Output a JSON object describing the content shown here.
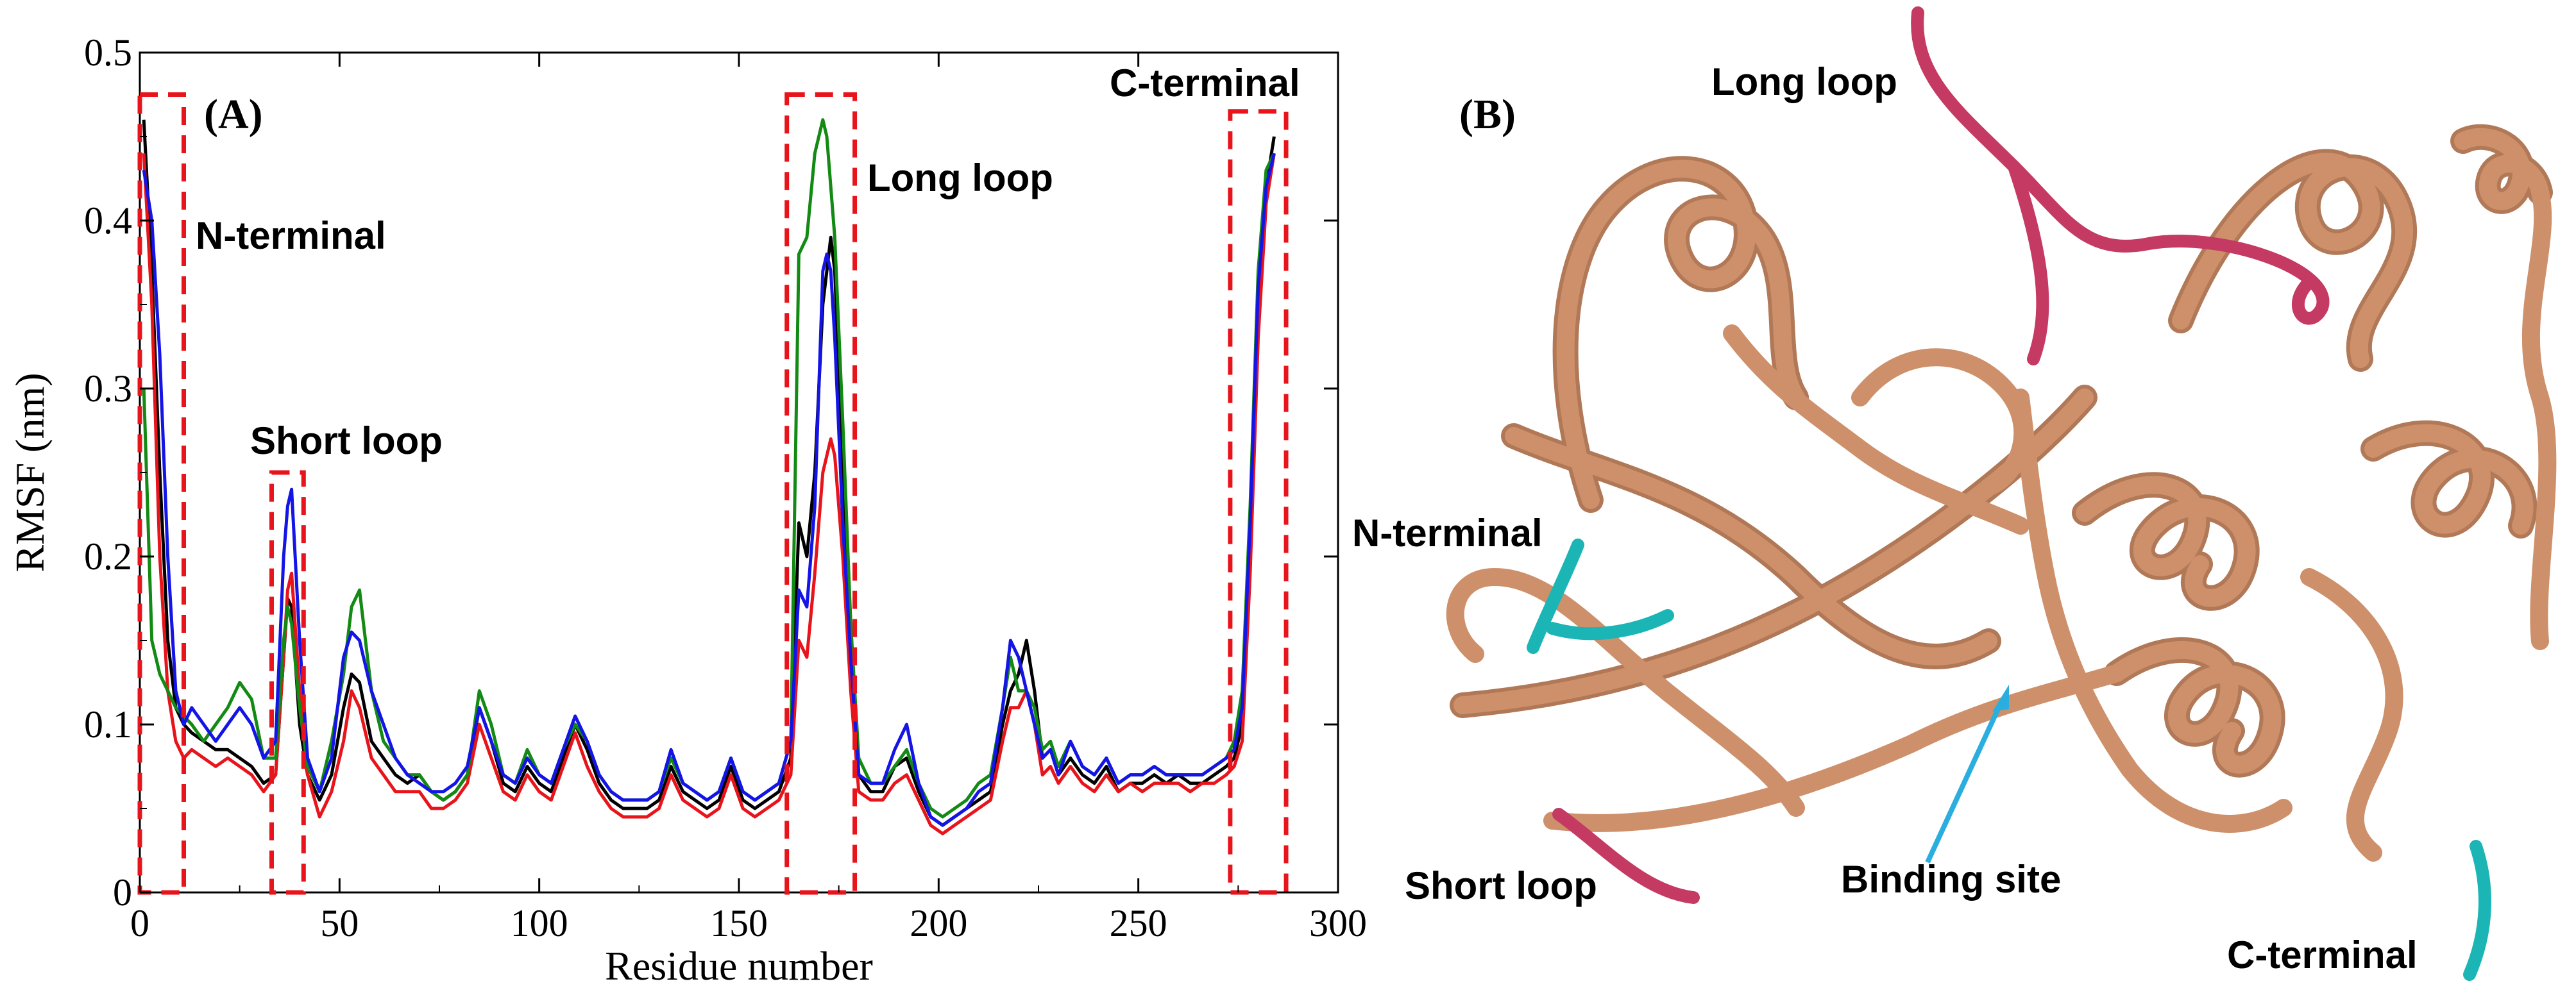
{
  "chart_data": {
    "type": "line",
    "panel_label": "(A)",
    "xlabel": "Residue number",
    "ylabel": "RMSF (nm)",
    "xlim": [
      0,
      300
    ],
    "ylim": [
      0,
      0.5
    ],
    "xticks": [
      0,
      50,
      100,
      150,
      200,
      250,
      300
    ],
    "yticks": [
      0,
      0.1,
      0.2,
      0.3,
      0.4,
      0.5
    ],
    "ytick_labels": [
      "0",
      "0.1",
      "0.2",
      "0.3",
      "0.4",
      "0.5"
    ],
    "regions": [
      {
        "name": "N-terminal",
        "x": [
          0,
          11
        ],
        "ymax": 0.475
      },
      {
        "name": "Short loop",
        "x": [
          33,
          41
        ],
        "ymax": 0.25
      },
      {
        "name": "Long loop",
        "x": [
          162,
          179
        ],
        "ymax": 0.475
      },
      {
        "name": "C-terminal",
        "x": [
          273,
          287
        ],
        "ymax": 0.465
      }
    ],
    "series": [
      {
        "name": "black",
        "color": "#000000",
        "x": [
          1,
          3,
          5,
          7,
          9,
          11,
          13,
          16,
          19,
          22,
          25,
          28,
          31,
          34,
          36,
          37,
          38,
          40,
          42,
          45,
          48,
          51,
          53,
          55,
          58,
          61,
          64,
          67,
          70,
          73,
          76,
          79,
          82,
          85,
          88,
          91,
          94,
          97,
          100,
          103,
          106,
          109,
          112,
          115,
          118,
          121,
          124,
          127,
          130,
          133,
          136,
          139,
          142,
          145,
          148,
          151,
          154,
          157,
          160,
          163,
          165,
          167,
          169,
          171,
          172,
          173,
          174,
          176,
          178,
          180,
          183,
          186,
          189,
          192,
          195,
          198,
          201,
          204,
          207,
          210,
          213,
          216,
          218,
          220,
          222,
          224,
          226,
          228,
          230,
          233,
          236,
          239,
          242,
          245,
          248,
          251,
          254,
          257,
          260,
          263,
          266,
          269,
          272,
          274,
          276,
          278,
          280,
          282,
          284
        ],
        "y": [
          0.46,
          0.37,
          0.25,
          0.15,
          0.11,
          0.1,
          0.095,
          0.09,
          0.085,
          0.085,
          0.08,
          0.075,
          0.065,
          0.07,
          0.14,
          0.175,
          0.17,
          0.1,
          0.07,
          0.055,
          0.07,
          0.11,
          0.13,
          0.125,
          0.09,
          0.08,
          0.07,
          0.065,
          0.07,
          0.06,
          0.055,
          0.06,
          0.07,
          0.11,
          0.09,
          0.065,
          0.06,
          0.075,
          0.065,
          0.06,
          0.08,
          0.1,
          0.085,
          0.065,
          0.055,
          0.05,
          0.05,
          0.05,
          0.055,
          0.075,
          0.06,
          0.055,
          0.05,
          0.055,
          0.075,
          0.055,
          0.05,
          0.055,
          0.06,
          0.08,
          0.22,
          0.2,
          0.25,
          0.35,
          0.37,
          0.39,
          0.37,
          0.25,
          0.16,
          0.07,
          0.06,
          0.06,
          0.075,
          0.08,
          0.06,
          0.045,
          0.04,
          0.045,
          0.05,
          0.055,
          0.06,
          0.1,
          0.12,
          0.13,
          0.15,
          0.12,
          0.08,
          0.085,
          0.07,
          0.08,
          0.07,
          0.065,
          0.075,
          0.06,
          0.065,
          0.065,
          0.07,
          0.065,
          0.07,
          0.065,
          0.065,
          0.07,
          0.075,
          0.08,
          0.1,
          0.2,
          0.35,
          0.42,
          0.45
        ]
      },
      {
        "name": "red",
        "color": "#e8141c",
        "x": [
          1,
          3,
          5,
          7,
          9,
          11,
          13,
          16,
          19,
          22,
          25,
          28,
          31,
          34,
          36,
          37,
          38,
          40,
          42,
          45,
          48,
          51,
          53,
          55,
          58,
          61,
          64,
          67,
          70,
          73,
          76,
          79,
          82,
          85,
          88,
          91,
          94,
          97,
          100,
          103,
          106,
          109,
          112,
          115,
          118,
          121,
          124,
          127,
          130,
          133,
          136,
          139,
          142,
          145,
          148,
          151,
          154,
          157,
          160,
          163,
          165,
          167,
          169,
          171,
          172,
          173,
          174,
          176,
          178,
          180,
          183,
          186,
          189,
          192,
          195,
          198,
          201,
          204,
          207,
          210,
          213,
          216,
          218,
          220,
          222,
          224,
          226,
          228,
          230,
          233,
          236,
          239,
          242,
          245,
          248,
          251,
          254,
          257,
          260,
          263,
          266,
          269,
          272,
          274,
          276,
          278,
          280,
          282,
          284
        ],
        "y": [
          0.44,
          0.35,
          0.2,
          0.12,
          0.09,
          0.08,
          0.085,
          0.08,
          0.075,
          0.08,
          0.075,
          0.07,
          0.06,
          0.07,
          0.14,
          0.18,
          0.19,
          0.12,
          0.07,
          0.045,
          0.06,
          0.09,
          0.12,
          0.11,
          0.08,
          0.07,
          0.06,
          0.06,
          0.06,
          0.05,
          0.05,
          0.055,
          0.065,
          0.1,
          0.08,
          0.06,
          0.055,
          0.07,
          0.06,
          0.055,
          0.075,
          0.095,
          0.075,
          0.06,
          0.05,
          0.045,
          0.045,
          0.045,
          0.05,
          0.07,
          0.055,
          0.05,
          0.045,
          0.05,
          0.07,
          0.05,
          0.045,
          0.05,
          0.055,
          0.07,
          0.15,
          0.14,
          0.19,
          0.25,
          0.26,
          0.27,
          0.26,
          0.2,
          0.12,
          0.06,
          0.055,
          0.055,
          0.065,
          0.07,
          0.055,
          0.04,
          0.035,
          0.04,
          0.045,
          0.05,
          0.055,
          0.09,
          0.11,
          0.11,
          0.12,
          0.1,
          0.07,
          0.075,
          0.065,
          0.075,
          0.065,
          0.06,
          0.07,
          0.06,
          0.065,
          0.06,
          0.065,
          0.065,
          0.065,
          0.06,
          0.065,
          0.065,
          0.07,
          0.075,
          0.09,
          0.19,
          0.33,
          0.41,
          0.44
        ]
      },
      {
        "name": "green",
        "color": "#138a13",
        "x": [
          1,
          3,
          5,
          7,
          9,
          11,
          13,
          16,
          19,
          22,
          25,
          28,
          31,
          34,
          36,
          37,
          38,
          40,
          42,
          45,
          48,
          51,
          53,
          55,
          58,
          61,
          64,
          67,
          70,
          73,
          76,
          79,
          82,
          85,
          88,
          91,
          94,
          97,
          100,
          103,
          106,
          109,
          112,
          115,
          118,
          121,
          124,
          127,
          130,
          133,
          136,
          139,
          142,
          145,
          148,
          151,
          154,
          157,
          160,
          163,
          165,
          167,
          169,
          171,
          172,
          173,
          174,
          176,
          178,
          180,
          183,
          186,
          189,
          192,
          195,
          198,
          201,
          204,
          207,
          210,
          213,
          216,
          218,
          220,
          222,
          224,
          226,
          228,
          230,
          233,
          236,
          239,
          242,
          245,
          248,
          251,
          254,
          257,
          260,
          263,
          266,
          269,
          272,
          274,
          276,
          278,
          280,
          282,
          284
        ],
        "y": [
          0.3,
          0.15,
          0.13,
          0.12,
          0.11,
          0.105,
          0.1,
          0.09,
          0.1,
          0.11,
          0.125,
          0.115,
          0.08,
          0.08,
          0.15,
          0.17,
          0.16,
          0.11,
          0.075,
          0.06,
          0.09,
          0.13,
          0.17,
          0.18,
          0.12,
          0.09,
          0.08,
          0.07,
          0.07,
          0.06,
          0.055,
          0.06,
          0.07,
          0.12,
          0.1,
          0.07,
          0.065,
          0.085,
          0.07,
          0.065,
          0.085,
          0.1,
          0.09,
          0.07,
          0.06,
          0.055,
          0.055,
          0.055,
          0.06,
          0.08,
          0.065,
          0.06,
          0.055,
          0.06,
          0.08,
          0.06,
          0.055,
          0.06,
          0.065,
          0.09,
          0.38,
          0.39,
          0.44,
          0.46,
          0.45,
          0.42,
          0.39,
          0.28,
          0.16,
          0.08,
          0.065,
          0.065,
          0.075,
          0.085,
          0.065,
          0.05,
          0.045,
          0.05,
          0.055,
          0.065,
          0.07,
          0.11,
          0.14,
          0.12,
          0.12,
          0.11,
          0.085,
          0.09,
          0.075,
          0.09,
          0.075,
          0.07,
          0.08,
          0.065,
          0.07,
          0.07,
          0.075,
          0.07,
          0.07,
          0.07,
          0.07,
          0.075,
          0.08,
          0.09,
          0.12,
          0.23,
          0.37,
          0.43,
          0.44
        ]
      },
      {
        "name": "blue",
        "color": "#1414e6",
        "x": [
          1,
          3,
          5,
          7,
          9,
          11,
          13,
          16,
          19,
          22,
          25,
          28,
          31,
          34,
          36,
          37,
          38,
          40,
          42,
          45,
          48,
          51,
          53,
          55,
          58,
          61,
          64,
          67,
          70,
          73,
          76,
          79,
          82,
          85,
          88,
          91,
          94,
          97,
          100,
          103,
          106,
          109,
          112,
          115,
          118,
          121,
          124,
          127,
          130,
          133,
          136,
          139,
          142,
          145,
          148,
          151,
          154,
          157,
          160,
          163,
          165,
          167,
          169,
          171,
          172,
          173,
          174,
          176,
          178,
          180,
          183,
          186,
          189,
          192,
          195,
          198,
          201,
          204,
          207,
          210,
          213,
          216,
          218,
          220,
          222,
          224,
          226,
          228,
          230,
          233,
          236,
          239,
          242,
          245,
          248,
          251,
          254,
          257,
          260,
          263,
          266,
          269,
          272,
          274,
          276,
          278,
          280,
          282,
          284
        ],
        "y": [
          0.43,
          0.4,
          0.32,
          0.2,
          0.12,
          0.1,
          0.11,
          0.1,
          0.09,
          0.1,
          0.11,
          0.1,
          0.08,
          0.09,
          0.2,
          0.23,
          0.24,
          0.15,
          0.08,
          0.06,
          0.08,
          0.14,
          0.155,
          0.15,
          0.12,
          0.1,
          0.08,
          0.07,
          0.065,
          0.06,
          0.06,
          0.065,
          0.075,
          0.11,
          0.09,
          0.07,
          0.065,
          0.08,
          0.07,
          0.065,
          0.085,
          0.105,
          0.09,
          0.07,
          0.06,
          0.055,
          0.055,
          0.055,
          0.06,
          0.085,
          0.065,
          0.06,
          0.055,
          0.06,
          0.08,
          0.06,
          0.055,
          0.06,
          0.065,
          0.09,
          0.18,
          0.17,
          0.23,
          0.37,
          0.38,
          0.37,
          0.33,
          0.22,
          0.14,
          0.07,
          0.065,
          0.065,
          0.085,
          0.1,
          0.065,
          0.045,
          0.04,
          0.045,
          0.05,
          0.06,
          0.065,
          0.11,
          0.15,
          0.14,
          0.12,
          0.1,
          0.08,
          0.085,
          0.07,
          0.09,
          0.075,
          0.07,
          0.08,
          0.065,
          0.07,
          0.07,
          0.075,
          0.07,
          0.07,
          0.07,
          0.07,
          0.075,
          0.08,
          0.085,
          0.11,
          0.22,
          0.36,
          0.42,
          0.44
        ]
      }
    ]
  },
  "structure_panel": {
    "panel_label": "(B)",
    "labels": {
      "long_loop": "Long loop",
      "n_terminal": "N-terminal",
      "short_loop": "Short loop",
      "binding_site": "Binding site",
      "c_terminal": "C-terminal"
    },
    "colors": {
      "ribbon": "#cd906a",
      "ribbon_dark": "#a86a45",
      "loop": "#c43a63",
      "terminal": "#1cb5b5",
      "arrow": "#2aaee0"
    }
  }
}
